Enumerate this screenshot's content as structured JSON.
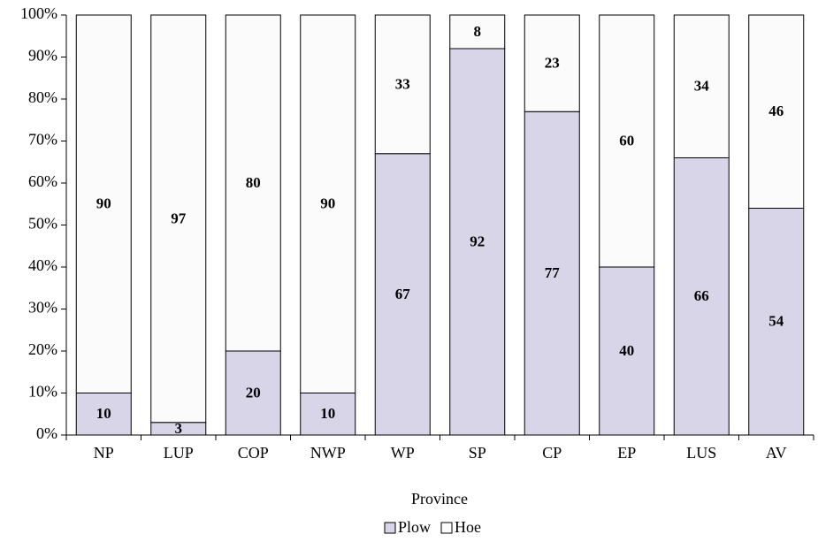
{
  "chart_data": {
    "type": "stacked_bar_100",
    "x_label": "Province",
    "categories": [
      "NP",
      "LUP",
      "COP",
      "NWP",
      "WP",
      "SP",
      "CP",
      "EP",
      "LUS",
      "AV"
    ],
    "series": [
      {
        "name": "Plow",
        "color": "#d9d5e9",
        "values": [
          10,
          3,
          20,
          10,
          67,
          92,
          77,
          40,
          66,
          54
        ]
      },
      {
        "name": "Hoe",
        "color": "#fbfbfb",
        "values": [
          90,
          97,
          80,
          90,
          33,
          8,
          23,
          60,
          34,
          46
        ]
      }
    ],
    "ylim": [
      0,
      100
    ],
    "yticks": [
      {
        "value": 0,
        "label": "0%"
      },
      {
        "value": 10,
        "label": "10%"
      },
      {
        "value": 20,
        "label": "20%"
      },
      {
        "value": 30,
        "label": "30%"
      },
      {
        "value": 40,
        "label": "40%"
      },
      {
        "value": 50,
        "label": "50%"
      },
      {
        "value": 60,
        "label": "60%"
      },
      {
        "value": 70,
        "label": "70%"
      },
      {
        "value": 80,
        "label": "80%"
      },
      {
        "value": 90,
        "label": "90%"
      },
      {
        "value": 100,
        "label": "100%"
      }
    ],
    "grid": false
  }
}
